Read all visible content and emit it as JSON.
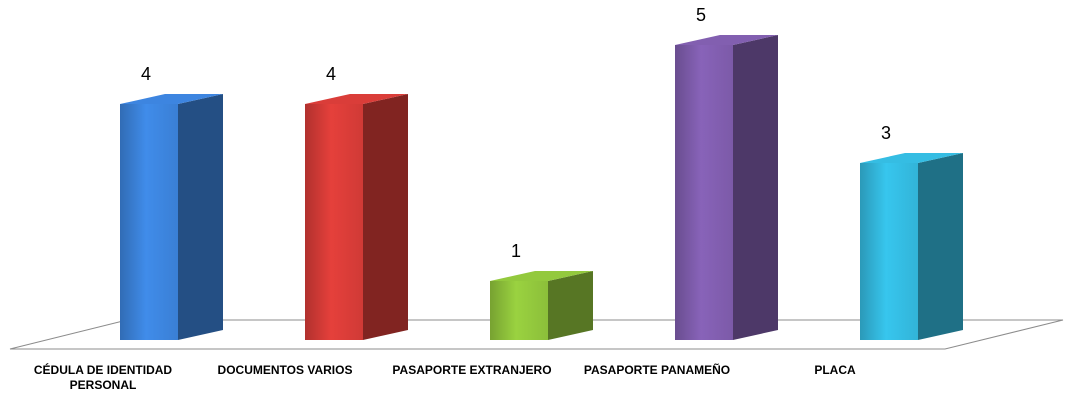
{
  "chart_data": {
    "type": "bar",
    "title": "",
    "xlabel": "",
    "ylabel": "",
    "categories": [
      [
        "CÉDULA DE IDENTIDAD",
        "PERSONAL"
      ],
      [
        "DOCUMENTOS VARIOS"
      ],
      [
        "PASAPORTE EXTRANJERO"
      ],
      [
        "PASAPORTE PANAMEÑO"
      ],
      [
        "PLACA"
      ]
    ],
    "values": [
      4,
      4,
      1,
      5,
      3
    ],
    "data_labels": [
      "4",
      "4",
      "1",
      "5",
      "3"
    ],
    "ylim": [
      0,
      5
    ],
    "grid": false,
    "legend": "none",
    "style": "3d-column",
    "colors": [
      "#3a7fd5",
      "#d03a36",
      "#8cbf3a",
      "#7c5aa8",
      "#32b4d8"
    ]
  }
}
